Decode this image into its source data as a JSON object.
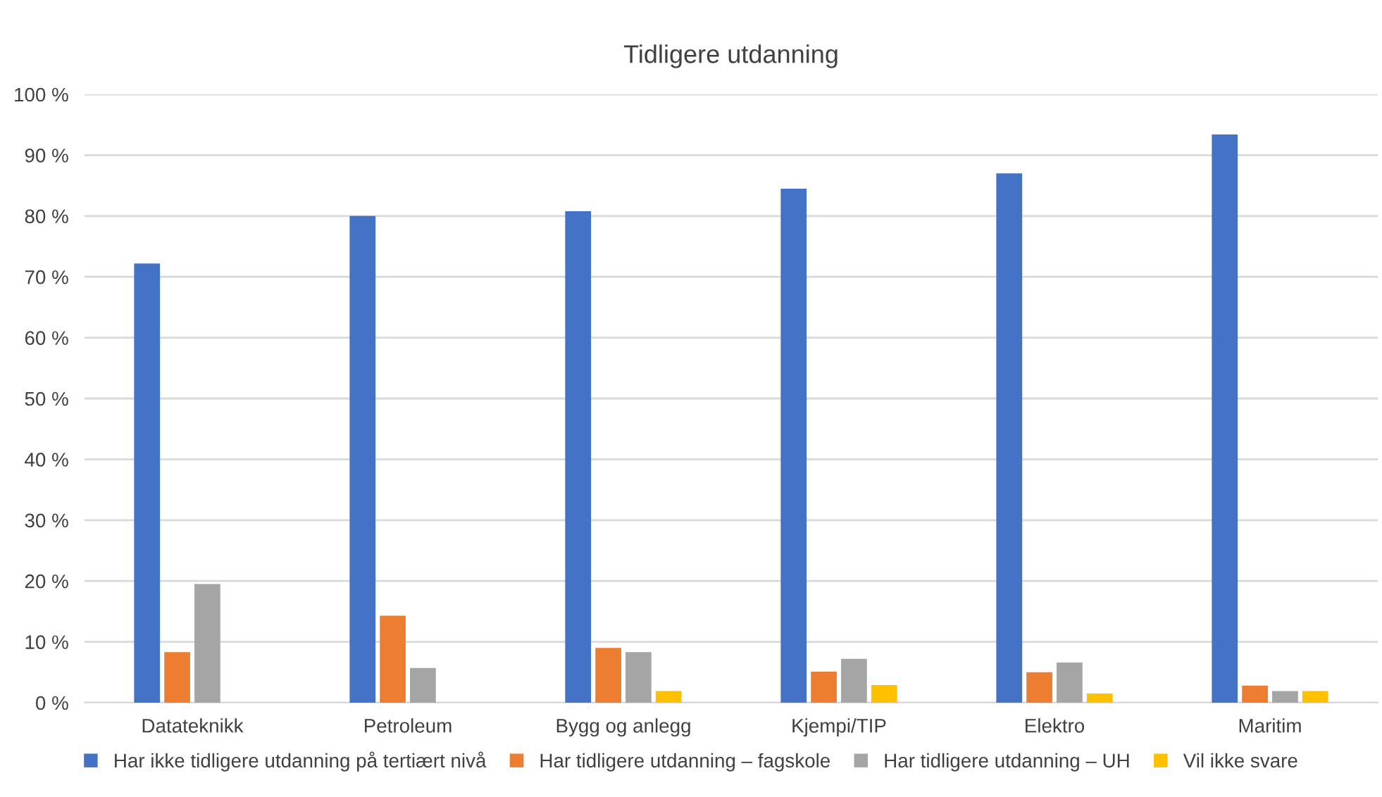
{
  "chart_data": {
    "type": "bar",
    "title": "Tidligere utdanning",
    "categories": [
      "Datateknikk",
      "Petroleum",
      "Bygg og anlegg",
      "Kjempi/TIP",
      "Elektro",
      "Maritim"
    ],
    "series": [
      {
        "name": "Har ikke tidligere utdanning på tertiært nivå",
        "color": "#4472c4",
        "values": [
          72.2,
          80.0,
          80.8,
          84.5,
          87.0,
          93.4
        ]
      },
      {
        "name": "Har tidligere utdanning – fagskole",
        "color": "#ed7d31",
        "values": [
          8.3,
          14.3,
          9.0,
          5.1,
          5.0,
          2.8
        ]
      },
      {
        "name": "Har tidligere utdanning – UH",
        "color": "#a5a5a5",
        "values": [
          19.5,
          5.7,
          8.3,
          7.2,
          6.6,
          1.9
        ]
      },
      {
        "name": "Vil ikke svare",
        "color": "#ffc000",
        "values": [
          0,
          0,
          1.9,
          2.9,
          1.5,
          1.9
        ]
      }
    ],
    "ylim": [
      0,
      100
    ],
    "yticks": [
      {
        "value": 0,
        "label": "0 %"
      },
      {
        "value": 10,
        "label": "10 %"
      },
      {
        "value": 20,
        "label": "20 %"
      },
      {
        "value": 30,
        "label": "30 %"
      },
      {
        "value": 40,
        "label": "40 %"
      },
      {
        "value": 50,
        "label": "50 %"
      },
      {
        "value": 60,
        "label": "60 %"
      },
      {
        "value": 70,
        "label": "70 %"
      },
      {
        "value": 80,
        "label": "80 %"
      },
      {
        "value": 90,
        "label": "90 %"
      },
      {
        "value": 100,
        "label": "100 %"
      }
    ],
    "grid": "y",
    "legend": "bottom"
  }
}
